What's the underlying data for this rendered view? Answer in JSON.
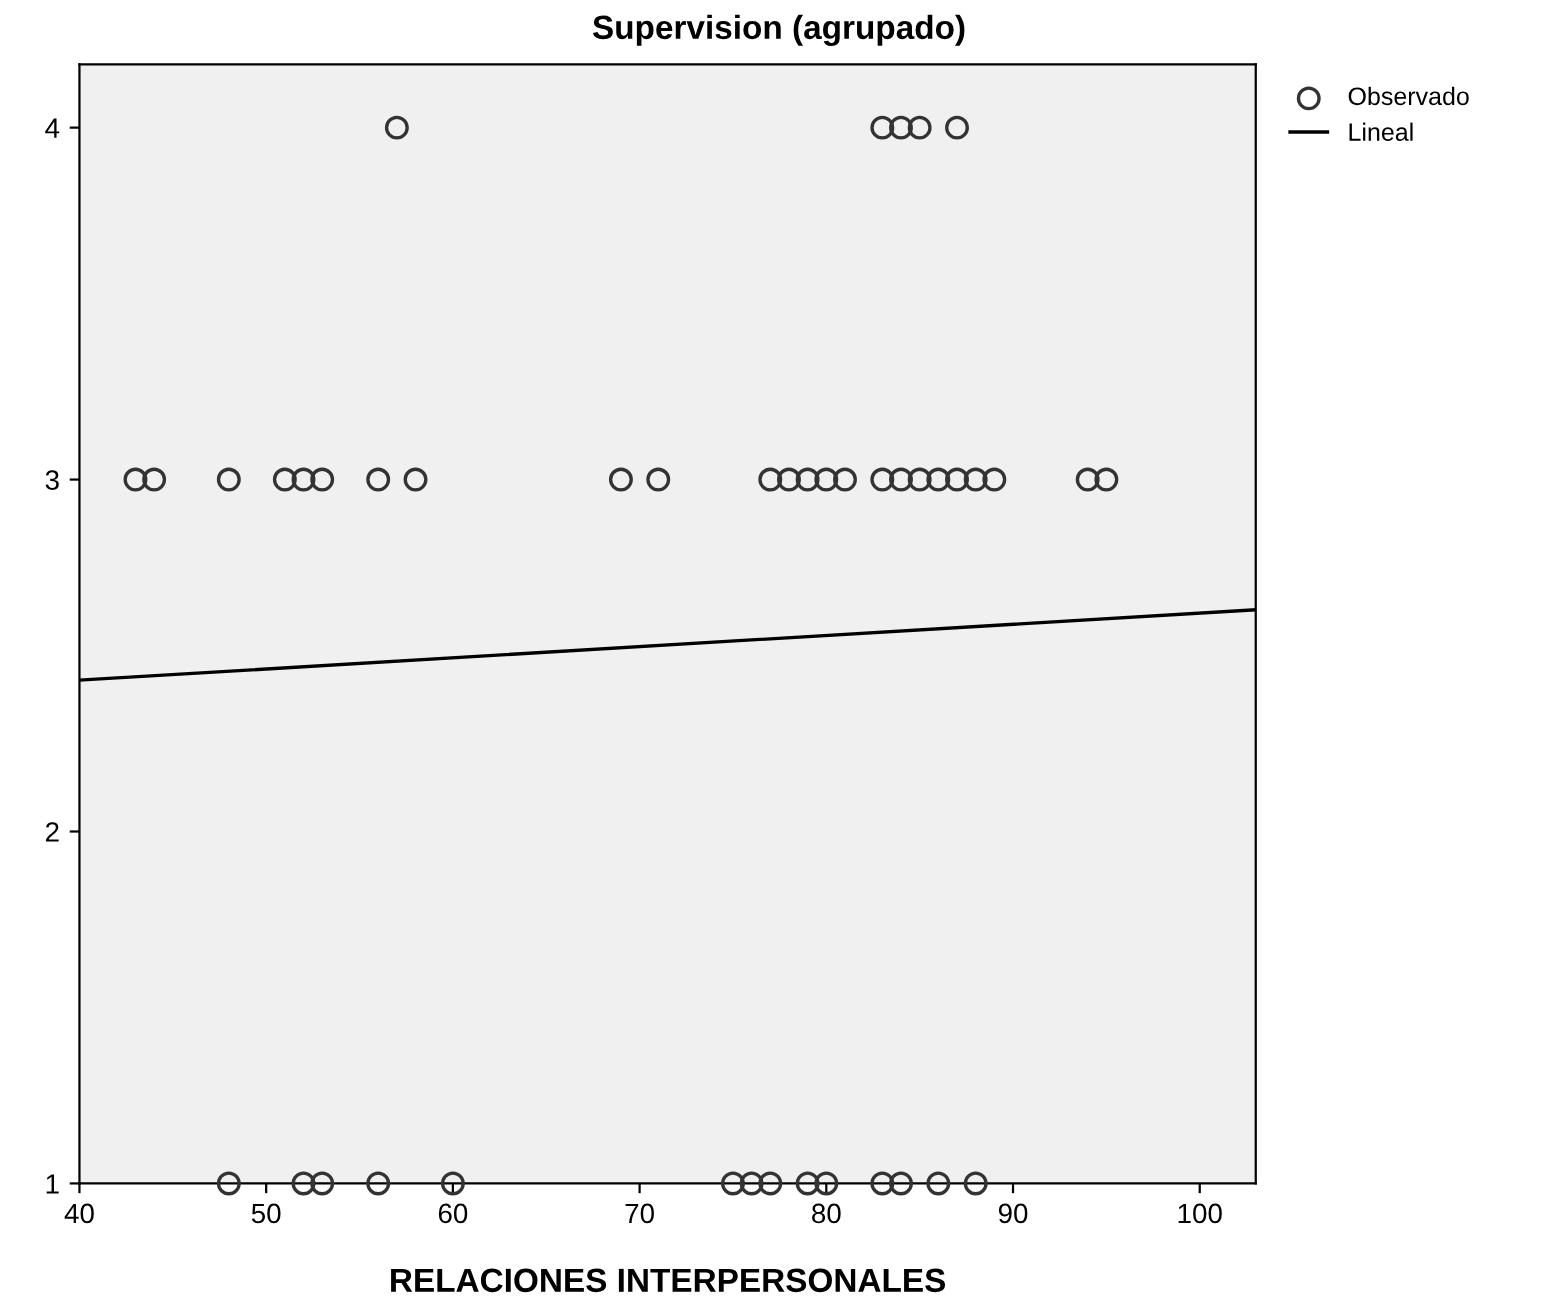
{
  "chart_data": {
    "type": "scatter",
    "title": "Supervision (agrupado)",
    "xlabel": "RELACIONES INTERPERSONALES",
    "xlim": [
      40,
      103
    ],
    "ylim": [
      1,
      4.18
    ],
    "xticks": [
      40,
      50,
      60,
      70,
      80,
      90,
      100
    ],
    "yticks": [
      1,
      2,
      3,
      4
    ],
    "grid": false,
    "legend": "top right",
    "marker": "circle",
    "series": [
      {
        "name": "Observado",
        "color": "#333333",
        "x": [
          43,
          44,
          48,
          51,
          52,
          53,
          56,
          58,
          69,
          71,
          77,
          78,
          79,
          80,
          81,
          83,
          84,
          85,
          86,
          87,
          88,
          89,
          94,
          95,
          57,
          83,
          84,
          85,
          87,
          48,
          52,
          53,
          56,
          60,
          75,
          76,
          77,
          79,
          80,
          83,
          84,
          86,
          88
        ],
        "values": [
          3,
          3,
          3,
          3,
          3,
          3,
          3,
          3,
          3,
          3,
          3,
          3,
          3,
          3,
          3,
          3,
          3,
          3,
          3,
          3,
          3,
          3,
          3,
          3,
          4,
          4,
          4,
          4,
          4,
          1,
          1,
          1,
          1,
          1,
          1,
          1,
          1,
          1,
          1,
          1,
          1,
          1,
          1
        ]
      },
      {
        "name": "Lineal",
        "type": "line",
        "color": "#000000",
        "line_style": "solid",
        "marker": "none",
        "x": [
          40,
          103
        ],
        "values": [
          2.43,
          2.63
        ]
      }
    ]
  }
}
